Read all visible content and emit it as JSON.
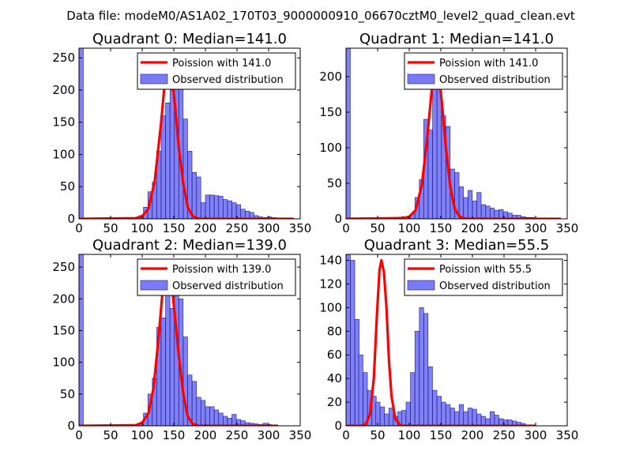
{
  "suptitle": "Data file: modeM0/AS1A02_170T03_9000000910_06670cztM0_level2_quad_clean.evt",
  "colors": {
    "poisson": "#ff0000",
    "hist_fill": "#7a7af5",
    "hist_edge": "#1a1a8a"
  },
  "chart_data": [
    {
      "type": "bar",
      "title": "Quadrant 0: Median=141.0",
      "xlim": [
        0,
        350
      ],
      "ylim": [
        0,
        265
      ],
      "xticks": [
        0,
        50,
        100,
        150,
        200,
        250,
        300,
        350
      ],
      "yticks": [
        0,
        50,
        100,
        150,
        200,
        250
      ],
      "legend": {
        "position": "top-right",
        "entries": [
          "Poission with 141.0",
          "Observed distribution"
        ]
      },
      "bin_width": 6.8,
      "histogram": [
        [
          0,
          265
        ],
        [
          88,
          0
        ],
        [
          95,
          5
        ],
        [
          102,
          18
        ],
        [
          109,
          42
        ],
        [
          116,
          57
        ],
        [
          123,
          105
        ],
        [
          130,
          160
        ],
        [
          137,
          180
        ],
        [
          144,
          200
        ],
        [
          151,
          250
        ],
        [
          158,
          240
        ],
        [
          165,
          155
        ],
        [
          172,
          105
        ],
        [
          179,
          72
        ],
        [
          186,
          65
        ],
        [
          193,
          25
        ],
        [
          200,
          37
        ],
        [
          207,
          37
        ],
        [
          214,
          36
        ],
        [
          221,
          35
        ],
        [
          228,
          30
        ],
        [
          235,
          28
        ],
        [
          242,
          25
        ],
        [
          249,
          22
        ],
        [
          256,
          15
        ],
        [
          263,
          12
        ],
        [
          270,
          10
        ],
        [
          277,
          5
        ],
        [
          284,
          3
        ],
        [
          291,
          2
        ],
        [
          298,
          3
        ],
        [
          305,
          2
        ],
        [
          312,
          1
        ],
        [
          319,
          1
        ],
        [
          326,
          1
        ],
        [
          333,
          0
        ]
      ],
      "poisson": [
        [
          0,
          0
        ],
        [
          90,
          1
        ],
        [
          100,
          4
        ],
        [
          110,
          16
        ],
        [
          120,
          60
        ],
        [
          130,
          150
        ],
        [
          136,
          215
        ],
        [
          141,
          252
        ],
        [
          146,
          235
        ],
        [
          152,
          175
        ],
        [
          158,
          110
        ],
        [
          165,
          55
        ],
        [
          172,
          18
        ],
        [
          180,
          4
        ],
        [
          190,
          0
        ],
        [
          340,
          0
        ]
      ]
    },
    {
      "type": "bar",
      "title": "Quadrant 1: Median=141.0",
      "xlim": [
        0,
        350
      ],
      "ylim": [
        0,
        240
      ],
      "xticks": [
        0,
        50,
        100,
        150,
        200,
        250,
        300,
        350
      ],
      "yticks": [
        0,
        50,
        100,
        150,
        200
      ],
      "legend": {
        "position": "top-right",
        "entries": [
          "Poission with 141.0",
          "Observed distribution"
        ]
      },
      "bin_width": 6.8,
      "histogram": [
        [
          0,
          240
        ],
        [
          74,
          1
        ],
        [
          81,
          2
        ],
        [
          88,
          3
        ],
        [
          95,
          3
        ],
        [
          102,
          7
        ],
        [
          109,
          30
        ],
        [
          116,
          55
        ],
        [
          123,
          140
        ],
        [
          130,
          125
        ],
        [
          137,
          200
        ],
        [
          144,
          195
        ],
        [
          151,
          145
        ],
        [
          158,
          130
        ],
        [
          165,
          70
        ],
        [
          172,
          65
        ],
        [
          179,
          45
        ],
        [
          186,
          30
        ],
        [
          193,
          40
        ],
        [
          200,
          25
        ],
        [
          207,
          37
        ],
        [
          214,
          20
        ],
        [
          221,
          18
        ],
        [
          228,
          15
        ],
        [
          235,
          12
        ],
        [
          242,
          13
        ],
        [
          249,
          10
        ],
        [
          256,
          8
        ],
        [
          263,
          5
        ],
        [
          270,
          5
        ],
        [
          277,
          3
        ],
        [
          284,
          2
        ],
        [
          291,
          2
        ],
        [
          298,
          1
        ]
      ],
      "poisson": [
        [
          0,
          0
        ],
        [
          90,
          1
        ],
        [
          100,
          3
        ],
        [
          110,
          12
        ],
        [
          120,
          48
        ],
        [
          128,
          110
        ],
        [
          135,
          175
        ],
        [
          141,
          227
        ],
        [
          146,
          215
        ],
        [
          152,
          160
        ],
        [
          158,
          100
        ],
        [
          165,
          45
        ],
        [
          172,
          14
        ],
        [
          180,
          3
        ],
        [
          190,
          0
        ],
        [
          340,
          0
        ]
      ]
    },
    {
      "type": "bar",
      "title": "Quadrant 2: Median=139.0",
      "xlim": [
        0,
        350
      ],
      "ylim": [
        0,
        270
      ],
      "xticks": [
        0,
        50,
        100,
        150,
        200,
        250,
        300,
        350
      ],
      "yticks": [
        0,
        50,
        100,
        150,
        200,
        250
      ],
      "legend": {
        "position": "top-right",
        "entries": [
          "Poission with 139.0",
          "Observed distribution"
        ]
      },
      "bin_width": 6.8,
      "histogram": [
        [
          0,
          270
        ],
        [
          95,
          3
        ],
        [
          102,
          20
        ],
        [
          109,
          50
        ],
        [
          116,
          75
        ],
        [
          123,
          155
        ],
        [
          130,
          170
        ],
        [
          137,
          215
        ],
        [
          144,
          185
        ],
        [
          151,
          255
        ],
        [
          158,
          200
        ],
        [
          165,
          140
        ],
        [
          172,
          80
        ],
        [
          179,
          70
        ],
        [
          186,
          45
        ],
        [
          193,
          40
        ],
        [
          200,
          30
        ],
        [
          207,
          30
        ],
        [
          214,
          25
        ],
        [
          221,
          20
        ],
        [
          228,
          15
        ],
        [
          235,
          12
        ],
        [
          242,
          18
        ],
        [
          249,
          10
        ],
        [
          256,
          8
        ],
        [
          263,
          5
        ],
        [
          270,
          4
        ],
        [
          277,
          3
        ],
        [
          284,
          2
        ],
        [
          291,
          4
        ],
        [
          298,
          2
        ],
        [
          305,
          1
        ]
      ],
      "poisson": [
        [
          0,
          0
        ],
        [
          90,
          1
        ],
        [
          100,
          5
        ],
        [
          110,
          20
        ],
        [
          118,
          60
        ],
        [
          126,
          140
        ],
        [
          133,
          220
        ],
        [
          139,
          257
        ],
        [
          145,
          240
        ],
        [
          151,
          180
        ],
        [
          158,
          110
        ],
        [
          165,
          50
        ],
        [
          172,
          15
        ],
        [
          180,
          3
        ],
        [
          190,
          0
        ],
        [
          315,
          0
        ]
      ]
    },
    {
      "type": "bar",
      "title": "Quadrant 3: Median=55.5",
      "xlim": [
        0,
        350
      ],
      "ylim": [
        0,
        145
      ],
      "xticks": [
        0,
        50,
        100,
        150,
        200,
        250,
        300,
        350
      ],
      "yticks": [
        0,
        20,
        40,
        60,
        80,
        100,
        120,
        140
      ],
      "legend": {
        "position": "top-right",
        "entries": [
          "Poission with 55.5",
          "Observed distribution"
        ]
      },
      "bin_width": 6.8,
      "histogram": [
        [
          0,
          145
        ],
        [
          7,
          140
        ],
        [
          14,
          90
        ],
        [
          20,
          60
        ],
        [
          27,
          45
        ],
        [
          34,
          30
        ],
        [
          41,
          25
        ],
        [
          47,
          20
        ],
        [
          54,
          16
        ],
        [
          61,
          10
        ],
        [
          68,
          15
        ],
        [
          75,
          8
        ],
        [
          82,
          12
        ],
        [
          88,
          13
        ],
        [
          95,
          20
        ],
        [
          102,
          45
        ],
        [
          109,
          80
        ],
        [
          116,
          100
        ],
        [
          123,
          95
        ],
        [
          130,
          50
        ],
        [
          137,
          30
        ],
        [
          144,
          25
        ],
        [
          151,
          20
        ],
        [
          158,
          18
        ],
        [
          165,
          15
        ],
        [
          172,
          12
        ],
        [
          179,
          18
        ],
        [
          186,
          12
        ],
        [
          193,
          15
        ],
        [
          200,
          14
        ],
        [
          207,
          10
        ],
        [
          214,
          8
        ],
        [
          221,
          6
        ],
        [
          228,
          12
        ],
        [
          235,
          9
        ],
        [
          242,
          6
        ],
        [
          249,
          5
        ],
        [
          256,
          5
        ],
        [
          263,
          4
        ],
        [
          270,
          3
        ],
        [
          277,
          2
        ]
      ],
      "poisson": [
        [
          0,
          0
        ],
        [
          25,
          0
        ],
        [
          32,
          2
        ],
        [
          38,
          10
        ],
        [
          44,
          40
        ],
        [
          49,
          95
        ],
        [
          53,
          132
        ],
        [
          56,
          140
        ],
        [
          60,
          130
        ],
        [
          64,
          100
        ],
        [
          68,
          55
        ],
        [
          72,
          25
        ],
        [
          78,
          6
        ],
        [
          85,
          1
        ],
        [
          90,
          0
        ],
        [
          300,
          0
        ]
      ]
    }
  ]
}
